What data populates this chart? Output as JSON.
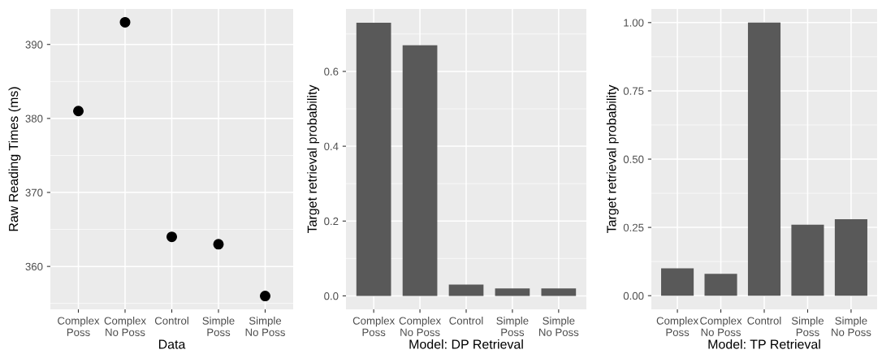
{
  "chart_data": [
    {
      "type": "scatter",
      "xlabel": "Data",
      "ylabel": "Raw Reading Times (ms)",
      "categories": [
        "Complex\nPoss",
        "Complex\nNo Poss",
        "Control",
        "Simple\nPoss",
        "Simple\nNo Poss"
      ],
      "values": [
        381,
        393,
        364,
        363,
        356
      ],
      "color": "#000000",
      "marker": "circle",
      "ylim": [
        354.2,
        394.8
      ],
      "yticks": [
        360,
        370,
        380,
        390
      ],
      "grid": true
    },
    {
      "type": "bar",
      "xlabel": "Model: DP Retrieval",
      "ylabel": "Target retrieval probability",
      "categories": [
        "Complex\nPoss",
        "Complex\nNo Poss",
        "Control",
        "Simple\nPoss",
        "Simple\nNo Poss"
      ],
      "values": [
        0.73,
        0.67,
        0.03,
        0.02,
        0.02
      ],
      "color": "#595959",
      "ylim": [
        -0.036,
        0.767
      ],
      "yticks": [
        {
          "value": 0,
          "label": "0.0"
        },
        0.2,
        0.4,
        0.6
      ],
      "grid": true
    },
    {
      "type": "bar",
      "xlabel": "Model: TP Retrieval",
      "ylabel": "Target retrieval probability",
      "categories": [
        "Complex\nPoss",
        "Complex\nNo Poss",
        "Control",
        "Simple\nPoss",
        "Simple\nNo Poss"
      ],
      "values": [
        0.1,
        0.08,
        1.0,
        0.26,
        0.28
      ],
      "color": "#595959",
      "ylim": [
        -0.05,
        1.05
      ],
      "yticks": [
        {
          "value": 0,
          "label": "0.00"
        },
        {
          "value": 0.25,
          "label": "0.25"
        },
        {
          "value": 0.5,
          "label": "0.50"
        },
        {
          "value": 0.75,
          "label": "0.75"
        },
        {
          "value": 1,
          "label": "1.00"
        }
      ],
      "grid": true
    }
  ]
}
